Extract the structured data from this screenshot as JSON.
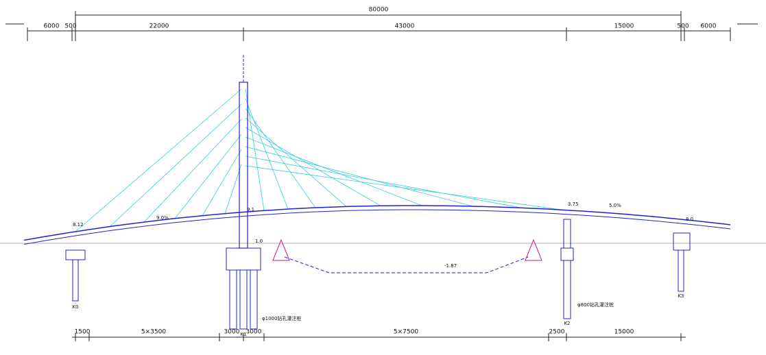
{
  "top_dimensions": {
    "overall": "80000",
    "spans": [
      "6000",
      "500",
      "22000",
      "43000",
      "15000",
      "500",
      "6000"
    ]
  },
  "bottom_dimensions": [
    "1500",
    "5×3500",
    "3000",
    "3000",
    "5×7500",
    "2500",
    "15000"
  ],
  "grades": {
    "left": "9.0%",
    "right": "5.0%"
  },
  "elevations": {
    "abutment_left": "8.12",
    "tower": "9.1",
    "pier_k2": "3.75",
    "abutment_right": "8.0",
    "cap_k1": "1.0",
    "river_bed": "-1.87"
  },
  "piers": [
    "K0",
    "K1",
    "K2",
    "K3"
  ],
  "pile_notes": {
    "k1": "φ1000钻孔灌注桩",
    "k2": "φ800钻孔灌注桩"
  }
}
